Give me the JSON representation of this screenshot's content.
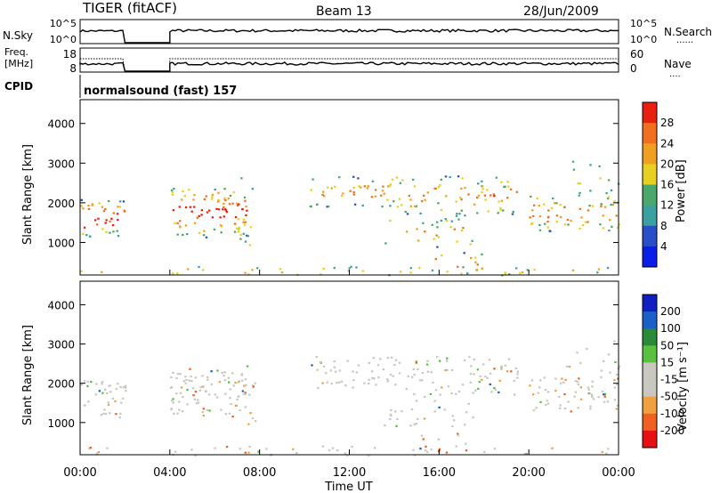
{
  "header": {
    "title": "TIGER (fitACF)",
    "beam": "Beam 13",
    "date": "28/Jun/2009"
  },
  "side_labels": {
    "nsky": "N.Sky",
    "nsearch": "N.Search",
    "nsearch_dots": "......",
    "freq_line1": "Freq.",
    "freq_line2": "[MHz]",
    "nave": "Nave",
    "nave_dots": "....",
    "cpid": "CPID",
    "cpid_value": "normalsound (fast) 157"
  },
  "time_axis": {
    "label": "Time UT",
    "ticks": [
      "00:00",
      "04:00",
      "08:00",
      "12:00",
      "16:00",
      "20:00",
      "00:00"
    ]
  },
  "colors": {
    "power_scale": [
      "#0a1ee6",
      "#2a4ec8",
      "#3aa0a0",
      "#4aa86a",
      "#e8d020",
      "#f0a020",
      "#f07020",
      "#e82010"
    ],
    "velocity_scale": [
      "#e81010",
      "#f06020",
      "#f0a040",
      "#c8c8c0",
      "#c8c8c0",
      "#5ac040",
      "#2a8a3a",
      "#1a60c8",
      "#1020c0"
    ]
  },
  "chart_data": [
    {
      "type": "line",
      "title": "",
      "ylabel": "N.Sky",
      "y_ticks_left": [
        "10^5",
        "10^0"
      ],
      "y_ticks_right": [
        "10^5",
        "10^0"
      ],
      "ylabel_right": "N.Search",
      "data_gaps_hours": [
        [
          2.0,
          4.0
        ]
      ],
      "x_range_hours": [
        0,
        24
      ]
    },
    {
      "type": "line",
      "ylabel": "Freq. [MHz]",
      "y_ticks_left": [
        "18",
        "8"
      ],
      "y_ticks_right": [
        "60",
        "0"
      ],
      "ylabel_right": "Nave",
      "data_gaps_hours": [
        [
          2.0,
          4.0
        ]
      ]
    },
    {
      "type": "heatmap",
      "ylabel": "Slant Range [km]",
      "y_ticks": [
        "1000",
        "2000",
        "3000",
        "4000"
      ],
      "ylim": [
        180,
        4600
      ],
      "xlim_hours": [
        0,
        24
      ],
      "colorbar_label": "Power [dB]",
      "colorbar_ticks": [
        "4",
        "8",
        "12",
        "16",
        "20",
        "24",
        "28"
      ],
      "data_gaps_hours": [
        [
          2.0,
          4.0
        ]
      ]
    },
    {
      "type": "heatmap",
      "ylabel": "Slant Range [km]",
      "y_ticks": [
        "1000",
        "2000",
        "3000",
        "4000"
      ],
      "ylim": [
        180,
        4600
      ],
      "xlim_hours": [
        0,
        24
      ],
      "colorbar_label": "Velocity [m s⁻¹]",
      "colorbar_ticks": [
        "-200",
        "-100",
        "-50",
        "-15",
        "15",
        "50",
        "100",
        "200"
      ],
      "data_gaps_hours": [
        [
          2.0,
          4.0
        ]
      ]
    }
  ]
}
